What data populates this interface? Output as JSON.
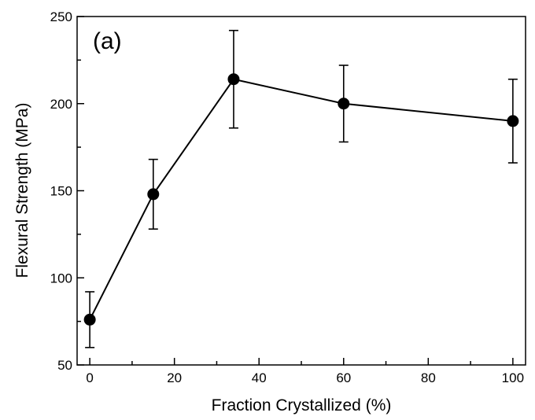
{
  "chart_data": {
    "type": "line",
    "panel_label": "(a)",
    "xlabel": "Fraction Crystallized (%)",
    "ylabel": "Flexural Strength (MPa)",
    "xlim": [
      -3,
      103
    ],
    "ylim": [
      50,
      250
    ],
    "x_ticks": [
      0,
      20,
      40,
      60,
      80,
      100
    ],
    "y_ticks": [
      50,
      100,
      150,
      200,
      250
    ],
    "grid": false,
    "legend": "none",
    "series": [
      {
        "x": [
          0,
          15,
          34,
          60,
          100
        ],
        "y": [
          76,
          148,
          214,
          200,
          190
        ],
        "yerr_low": [
          60,
          128,
          186,
          178,
          166
        ],
        "yerr_high": [
          92,
          168,
          242,
          222,
          214
        ],
        "color": "#000000",
        "marker": "filled-circle"
      }
    ]
  }
}
